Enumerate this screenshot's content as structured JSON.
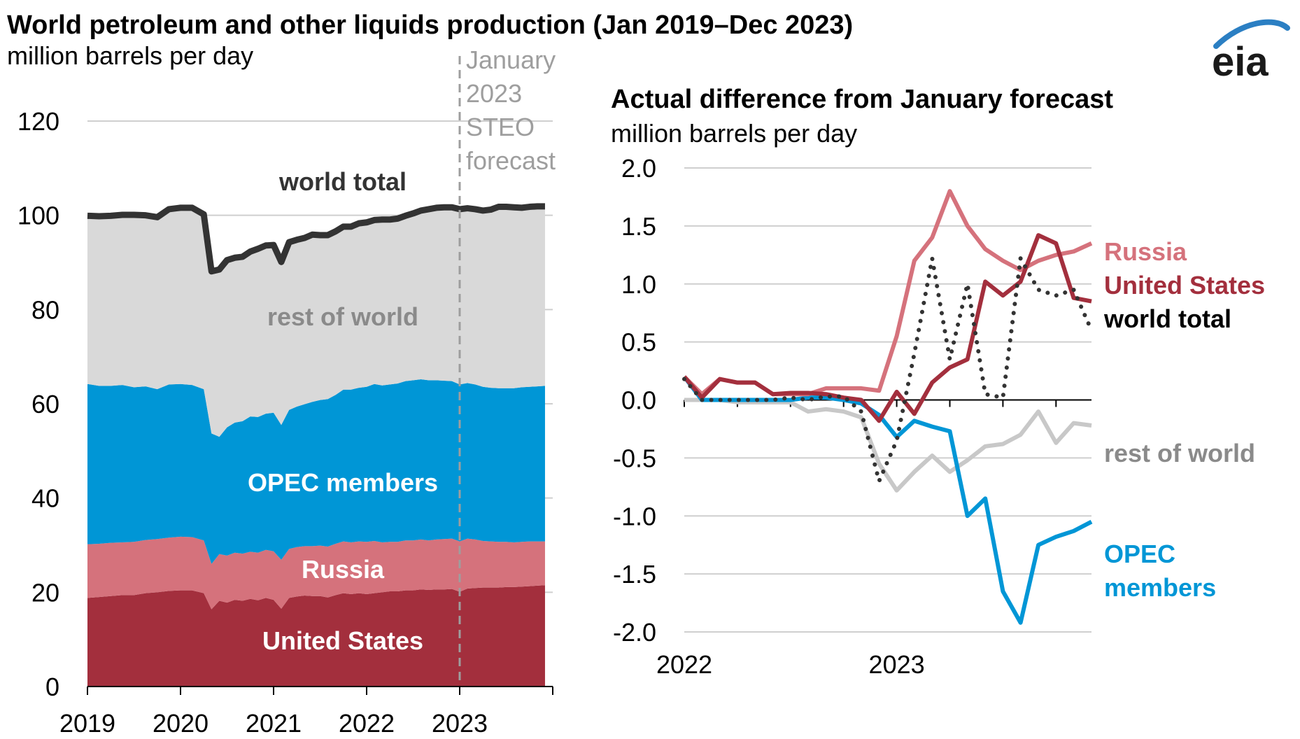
{
  "title": "World petroleum and other liquids production (Jan 2019–Dec 2023)",
  "subtitle": "million barrels per day",
  "logo": "eia",
  "colors": {
    "us": "#a32f3d",
    "russia": "#d5727c",
    "opec": "#0096d6",
    "rest": "#d9d9d9",
    "rest_line": "#c8c8c8",
    "world": "#333333",
    "forecast_line": "#9e9e9e",
    "forecast_text": "#9e9e9e",
    "grid": "#cfcfcf",
    "logo": "#2b7fc3"
  },
  "left_panel": {
    "forecast_label": [
      "January",
      "2023",
      "STEO",
      "forecast"
    ],
    "labels": {
      "world": "world total",
      "rest": "rest of world",
      "opec": "OPEC members",
      "russia": "Russia",
      "us": "United States"
    }
  },
  "right_panel": {
    "title": "Actual difference from January forecast",
    "subtitle": "million barrels per day",
    "labels": {
      "russia": "Russia",
      "us": "United States",
      "world": "world total",
      "rest": "rest of world",
      "opec": [
        "OPEC",
        "members"
      ]
    }
  },
  "chart_data": [
    {
      "type": "area",
      "title": "World petroleum and other liquids production (Jan 2019–Dec 2023)",
      "ylabel": "million barrels per day",
      "xlim": [
        2019,
        2024
      ],
      "ylim": [
        0,
        120
      ],
      "xticks": [
        "2019",
        "2020",
        "2021",
        "2022",
        "2023"
      ],
      "yticks": [
        "0",
        "20",
        "40",
        "60",
        "80",
        "100",
        "120"
      ],
      "grid": true,
      "stacked": true,
      "forecast_start": 2023,
      "x": [
        2019.0,
        2019.125,
        2019.25,
        2019.375,
        2019.5,
        2019.625,
        2019.75,
        2019.875,
        2020.0,
        2020.125,
        2020.25,
        2020.333,
        2020.417,
        2020.5,
        2020.583,
        2020.667,
        2020.75,
        2020.833,
        2020.917,
        2021.0,
        2021.083,
        2021.167,
        2021.25,
        2021.333,
        2021.417,
        2021.5,
        2021.583,
        2021.667,
        2021.75,
        2021.833,
        2021.917,
        2022.0,
        2022.083,
        2022.167,
        2022.25,
        2022.333,
        2022.417,
        2022.5,
        2022.583,
        2022.667,
        2022.75,
        2022.833,
        2022.917,
        2023.0,
        2023.083,
        2023.167,
        2023.25,
        2023.333,
        2023.417,
        2023.5,
        2023.583,
        2023.667,
        2023.75,
        2023.833,
        2023.917
      ],
      "series": [
        {
          "name": "United States",
          "values": [
            18.8,
            19.0,
            19.2,
            19.4,
            19.4,
            19.8,
            20.0,
            20.3,
            20.4,
            20.4,
            19.8,
            16.4,
            18.2,
            17.8,
            18.4,
            18.2,
            18.6,
            18.3,
            18.8,
            18.4,
            16.5,
            18.8,
            19.1,
            19.3,
            19.2,
            19.2,
            18.9,
            19.4,
            19.8,
            19.6,
            19.8,
            19.6,
            19.8,
            20.0,
            20.2,
            20.2,
            20.4,
            20.4,
            20.6,
            20.5,
            20.6,
            20.6,
            20.7,
            20.1,
            20.8,
            20.9,
            21.0,
            21.0,
            21.0,
            21.1,
            21.1,
            21.2,
            21.3,
            21.4,
            21.5
          ]
        },
        {
          "name": "Russia",
          "values": [
            11.4,
            11.3,
            11.3,
            11.2,
            11.3,
            11.3,
            11.3,
            11.3,
            11.4,
            11.3,
            11.2,
            9.6,
            9.9,
            10.0,
            10.0,
            10.0,
            10.0,
            10.1,
            10.2,
            10.3,
            10.4,
            10.4,
            10.5,
            10.5,
            10.6,
            10.7,
            10.8,
            10.9,
            11.0,
            11.0,
            11.0,
            11.1,
            11.1,
            10.6,
            10.5,
            10.5,
            10.6,
            10.6,
            10.6,
            10.5,
            10.6,
            10.7,
            10.7,
            10.7,
            10.6,
            10.3,
            9.9,
            9.8,
            9.7,
            9.6,
            9.5,
            9.5,
            9.5,
            9.4,
            9.3
          ]
        },
        {
          "name": "OPEC members",
          "values": [
            34.0,
            33.5,
            33.3,
            33.4,
            32.8,
            32.6,
            31.8,
            32.5,
            32.4,
            32.3,
            32.1,
            27.7,
            24.9,
            27.2,
            27.6,
            28.1,
            28.7,
            28.8,
            28.9,
            29.4,
            28.6,
            29.5,
            29.8,
            30.1,
            30.6,
            30.9,
            31.3,
            31.6,
            32.2,
            32.4,
            32.6,
            32.9,
            33.3,
            33.3,
            33.4,
            33.6,
            33.8,
            34.0,
            34.0,
            34.0,
            33.8,
            33.6,
            33.4,
            33.3,
            33.0,
            32.9,
            32.7,
            32.6,
            32.6,
            32.6,
            32.7,
            32.8,
            32.8,
            32.9,
            33.0
          ]
        },
        {
          "name": "rest of world",
          "values": [
            35.7,
            36.0,
            36.1,
            36.1,
            36.6,
            36.3,
            36.5,
            37.2,
            37.4,
            37.6,
            37.1,
            34.4,
            35.5,
            35.5,
            35.0,
            34.9,
            35.0,
            35.7,
            35.7,
            35.6,
            35.6,
            35.6,
            35.4,
            35.3,
            35.5,
            35.0,
            34.8,
            34.7,
            34.6,
            34.6,
            34.9,
            34.9,
            34.8,
            35.2,
            35.0,
            35.0,
            35.1,
            35.4,
            35.8,
            36.3,
            36.6,
            36.8,
            36.9,
            37.2,
            37.1,
            37.2,
            37.4,
            37.8,
            38.5,
            38.5,
            38.4,
            38.1,
            38.2,
            38.2,
            38.1
          ]
        }
      ],
      "world_total": [
        99.9,
        99.8,
        99.9,
        100.1,
        100.1,
        100.0,
        99.6,
        101.3,
        101.6,
        101.6,
        100.2,
        88.1,
        88.5,
        90.5,
        91.0,
        91.2,
        92.3,
        92.9,
        93.6,
        93.7,
        90.1,
        94.3,
        94.8,
        95.2,
        95.9,
        95.8,
        95.8,
        96.6,
        97.6,
        97.6,
        98.3,
        98.5,
        99.0,
        99.1,
        99.1,
        99.3,
        99.9,
        100.4,
        101.0,
        101.3,
        101.6,
        101.7,
        101.7,
        101.3,
        101.5,
        101.3,
        101.0,
        101.2,
        101.8,
        101.8,
        101.7,
        101.6,
        101.8,
        101.9,
        101.9
      ]
    },
    {
      "type": "line",
      "title": "Actual difference from January forecast",
      "ylabel": "million barrels per day",
      "xlim": [
        2022,
        2023.917
      ],
      "ylim": [
        -2.0,
        2.0
      ],
      "xticks": [
        "2022",
        "2023"
      ],
      "yticks": [
        "2.0",
        "1.5",
        "1.0",
        "0.5",
        "0.0",
        "-0.5",
        "-1.0",
        "-1.5",
        "-2.0"
      ],
      "grid": true,
      "x": [
        2022.0,
        2022.083,
        2022.167,
        2022.25,
        2022.333,
        2022.417,
        2022.5,
        2022.583,
        2022.667,
        2022.75,
        2022.833,
        2022.917,
        2023.0,
        2023.083,
        2023.167,
        2023.25,
        2023.333,
        2023.417,
        2023.5,
        2023.583,
        2023.667,
        2023.75,
        2023.833,
        2023.917
      ],
      "series": [
        {
          "name": "Russia",
          "values": [
            0.2,
            0.05,
            0.18,
            0.15,
            0.15,
            0.05,
            0.05,
            0.05,
            0.1,
            0.1,
            0.1,
            0.08,
            0.55,
            1.2,
            1.4,
            1.8,
            1.5,
            1.3,
            1.2,
            1.12,
            1.2,
            1.25,
            1.28,
            1.35
          ]
        },
        {
          "name": "United States",
          "values": [
            0.2,
            0.02,
            0.18,
            0.15,
            0.15,
            0.05,
            0.06,
            0.06,
            0.05,
            0.02,
            0.0,
            -0.18,
            0.07,
            -0.12,
            0.15,
            0.28,
            0.35,
            1.02,
            0.9,
            1.02,
            1.42,
            1.35,
            0.88,
            0.85
          ]
        },
        {
          "name": "world total",
          "values": [
            0.18,
            0.0,
            0.0,
            0.0,
            0.0,
            0.0,
            0.02,
            0.0,
            0.03,
            0.03,
            -0.1,
            -0.7,
            -0.35,
            0.4,
            1.22,
            0.35,
            1.0,
            0.05,
            0.02,
            1.22,
            0.95,
            0.9,
            0.95,
            0.6
          ]
        },
        {
          "name": "rest of world",
          "values": [
            0.0,
            0.0,
            0.0,
            -0.02,
            -0.02,
            -0.02,
            -0.02,
            -0.1,
            -0.08,
            -0.1,
            -0.15,
            -0.55,
            -0.78,
            -0.62,
            -0.48,
            -0.62,
            -0.52,
            -0.4,
            -0.38,
            -0.3,
            -0.1,
            -0.37,
            -0.2,
            -0.22
          ]
        },
        {
          "name": "OPEC members",
          "values": [
            0.2,
            0.0,
            0.0,
            0.0,
            0.0,
            0.0,
            0.0,
            0.02,
            0.02,
            0.0,
            -0.03,
            -0.13,
            -0.32,
            -0.18,
            -0.23,
            -0.27,
            -1.0,
            -0.85,
            -1.65,
            -1.92,
            -1.25,
            -1.18,
            -1.13,
            -1.05
          ]
        }
      ]
    }
  ]
}
